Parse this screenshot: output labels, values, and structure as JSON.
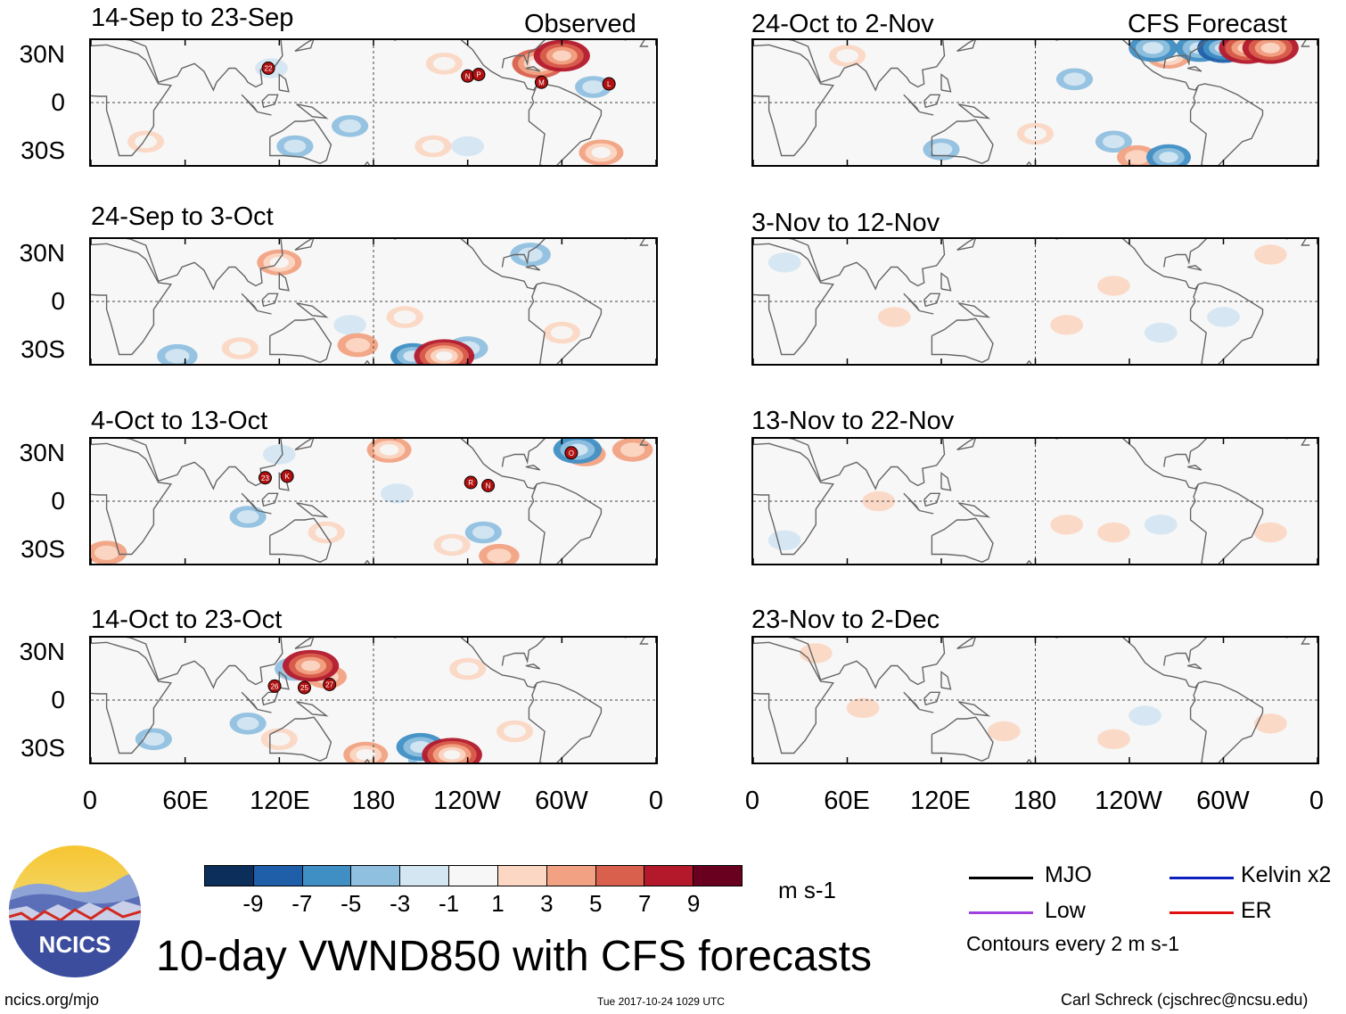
{
  "observed_label": "Observed",
  "forecast_label": "CFS Forecast",
  "lat_labels": [
    "30N",
    "0",
    "30S"
  ],
  "lon_labels": [
    "0",
    "60E",
    "120E",
    "180",
    "120W",
    "60W",
    "0"
  ],
  "panels_left": [
    {
      "title": "14-Sep to 23-Sep"
    },
    {
      "title": "24-Sep to 3-Oct"
    },
    {
      "title": "4-Oct to 13-Oct"
    },
    {
      "title": "14-Oct to 23-Oct"
    }
  ],
  "panels_right": [
    {
      "title": "24-Oct to 2-Nov"
    },
    {
      "title": "3-Nov to 12-Nov"
    },
    {
      "title": "13-Nov to 22-Nov"
    },
    {
      "title": "23-Nov to 2-Dec"
    }
  ],
  "storm_markers": {
    "p0": [
      "22",
      "N",
      "P",
      "M",
      "L"
    ],
    "p2": [
      "23",
      "K",
      "R",
      "N",
      "O"
    ],
    "p3": [
      "26",
      "25",
      "27"
    ]
  },
  "colorbar": {
    "colors": [
      "#0b2e5b",
      "#1f5ea8",
      "#3f8fc5",
      "#90c0df",
      "#d4e6f2",
      "#f7f7f7",
      "#fbd7c4",
      "#f2a283",
      "#d9604d",
      "#b3182b",
      "#6a0020"
    ],
    "labels": [
      "-9",
      "-7",
      "-5",
      "-3",
      "-1",
      "1",
      "3",
      "5",
      "7",
      "9"
    ],
    "units": "m s-1"
  },
  "main_title": "10-day VWND850 with CFS forecasts",
  "legend": {
    "items": [
      {
        "label": "MJO",
        "color": "#000000"
      },
      {
        "label": "Low",
        "color": "#a040e0"
      },
      {
        "label": "Kelvin x2",
        "color": "#1020c0"
      },
      {
        "label": "ER",
        "color": "#e01010"
      }
    ],
    "contours_note": "Contours every 2 m s-1"
  },
  "logo_text": "NCICS",
  "footer": {
    "url": "ncics.org/mjo",
    "timestamp": "Tue 2017-10-24 1029 UTC",
    "credit": "Carl Schreck (cjschrec@ncsu.edu)"
  },
  "chart_data": {
    "type": "heatmap",
    "variable": "VWND850 anomaly",
    "units": "m s-1",
    "x_axis": "longitude",
    "y_axis": "latitude",
    "xlim": [
      0,
      360
    ],
    "ylim": [
      -40,
      40
    ],
    "color_levels": [
      -9,
      -7,
      -5,
      -3,
      -1,
      1,
      3,
      5,
      7,
      9
    ],
    "panels": [
      {
        "title": "14-Sep to 23-Sep",
        "source": "Observed",
        "blobs": [
          [
            225,
            25,
            3
          ],
          [
            285,
            25,
            7
          ],
          [
            300,
            30,
            8
          ],
          [
            218,
            -28,
            3
          ],
          [
            130,
            -28,
            -3
          ],
          [
            165,
            -15,
            -3
          ],
          [
            325,
            -32,
            5
          ],
          [
            240,
            -28,
            -2
          ],
          [
            320,
            10,
            -3
          ],
          [
            35,
            -25,
            3
          ],
          [
            115,
            22,
            -2
          ]
        ]
      },
      {
        "title": "24-Sep to 3-Oct",
        "source": "Observed",
        "blobs": [
          [
            120,
            25,
            5
          ],
          [
            200,
            -10,
            3
          ],
          [
            225,
            -35,
            9
          ],
          [
            205,
            -35,
            -5
          ],
          [
            170,
            -28,
            4
          ],
          [
            165,
            -15,
            -2
          ],
          [
            280,
            30,
            -4
          ],
          [
            240,
            -30,
            -4
          ],
          [
            300,
            -20,
            3
          ],
          [
            55,
            -35,
            -4
          ],
          [
            95,
            -30,
            3
          ]
        ]
      },
      {
        "title": "4-Oct to 13-Oct",
        "source": "Observed",
        "blobs": [
          [
            190,
            33,
            5
          ],
          [
            310,
            33,
            -6
          ],
          [
            315,
            30,
            4
          ],
          [
            345,
            33,
            4
          ],
          [
            195,
            5,
            -2
          ],
          [
            100,
            -10,
            -3
          ],
          [
            150,
            -20,
            3
          ],
          [
            230,
            -28,
            3
          ],
          [
            250,
            -20,
            -3
          ],
          [
            260,
            -35,
            4
          ],
          [
            10,
            -33,
            4
          ],
          [
            120,
            30,
            -2
          ]
        ]
      },
      {
        "title": "14-Oct to 23-Oct",
        "source": "Observed",
        "blobs": [
          [
            140,
            22,
            8
          ],
          [
            130,
            20,
            -4
          ],
          [
            150,
            15,
            4
          ],
          [
            230,
            -35,
            9
          ],
          [
            210,
            -30,
            -6
          ],
          [
            215,
            -38,
            -4
          ],
          [
            120,
            -25,
            3
          ],
          [
            100,
            -15,
            -3
          ],
          [
            40,
            -25,
            -3
          ],
          [
            175,
            -35,
            5
          ],
          [
            270,
            -20,
            3
          ],
          [
            240,
            20,
            3
          ]
        ]
      },
      {
        "title": "24-Oct to 2-Nov",
        "source": "CFS Forecast",
        "blobs": [
          [
            255,
            35,
            -6
          ],
          [
            265,
            30,
            5
          ],
          [
            285,
            35,
            -6
          ],
          [
            300,
            35,
            -7
          ],
          [
            315,
            35,
            8
          ],
          [
            330,
            35,
            8
          ],
          [
            245,
            -35,
            4
          ],
          [
            265,
            -35,
            -5
          ],
          [
            230,
            -25,
            -3
          ],
          [
            205,
            15,
            -3
          ],
          [
            180,
            -20,
            3
          ],
          [
            120,
            -30,
            -3
          ],
          [
            60,
            30,
            3
          ]
        ]
      },
      {
        "title": "3-Nov to 12-Nov",
        "source": "CFS Forecast",
        "blobs": [
          [
            200,
            -15,
            2
          ],
          [
            260,
            -20,
            -2
          ],
          [
            300,
            -10,
            -2
          ],
          [
            90,
            -10,
            2
          ],
          [
            230,
            10,
            2
          ],
          [
            330,
            30,
            2
          ],
          [
            20,
            25,
            -2
          ]
        ]
      },
      {
        "title": "13-Nov to 22-Nov",
        "source": "CFS Forecast",
        "blobs": [
          [
            200,
            -15,
            2
          ],
          [
            230,
            -20,
            2
          ],
          [
            260,
            -15,
            -2
          ],
          [
            330,
            -20,
            2
          ],
          [
            80,
            0,
            2
          ],
          [
            20,
            -25,
            -2
          ]
        ]
      },
      {
        "title": "23-Nov to 2-Dec",
        "source": "CFS Forecast",
        "blobs": [
          [
            160,
            -20,
            2
          ],
          [
            230,
            -25,
            2
          ],
          [
            250,
            -10,
            -2
          ],
          [
            330,
            -15,
            2
          ],
          [
            70,
            -5,
            2
          ],
          [
            40,
            30,
            2
          ]
        ]
      }
    ]
  }
}
